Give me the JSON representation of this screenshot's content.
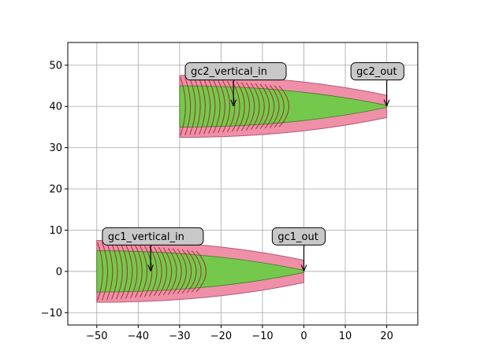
{
  "chart_data": {
    "type": "layout-plot",
    "title": "",
    "xlabel": "",
    "ylabel": "",
    "xlim": [
      -57,
      27.5
    ],
    "ylim": [
      -13,
      55.5
    ],
    "xticks": [
      -50,
      -40,
      -30,
      -20,
      -10,
      0,
      10,
      20
    ],
    "yticks": [
      -10,
      0,
      10,
      20,
      30,
      40,
      50
    ],
    "xtick_labels": [
      "−50",
      "−40",
      "−30",
      "−20",
      "−10",
      "0",
      "10",
      "20"
    ],
    "ytick_labels": [
      "−10",
      "0",
      "10",
      "20",
      "30",
      "40",
      "50"
    ],
    "grid": true,
    "colors": {
      "cladding": "#f08fa8",
      "cladding_edge": "#b05a78",
      "core": "#74c94c",
      "core_edge": "#3d7a2a",
      "grating": "#9a2c2c",
      "callout_fill": "#c8c8c8",
      "grid": "#b0b0b0"
    },
    "couplers": [
      {
        "name": "gc1",
        "x_start": -50,
        "x_end": 0,
        "y_center": 0,
        "cladding_half_width_start": 7.5,
        "cladding_half_width_end": 2.7,
        "core_half_width_start": 5.0,
        "core_half_width_end": 0.25,
        "grating_x_start": -48.5,
        "grating_x_end": -23.5,
        "grating_count": 22
      },
      {
        "name": "gc2",
        "x_start": -30,
        "x_end": 20,
        "y_center": 40,
        "cladding_half_width_start": 7.5,
        "cladding_half_width_end": 2.7,
        "core_half_width_start": 5.0,
        "core_half_width_end": 0.25,
        "grating_x_start": -28.5,
        "grating_x_end": -3.5,
        "grating_count": 22
      }
    ],
    "annotations": [
      {
        "text": "gc1_vertical_in",
        "label_x": -47.5,
        "label_y": 8.5,
        "arrow_x": -37,
        "arrow_y": 0
      },
      {
        "text": "gc1_out",
        "label_x": -6.5,
        "label_y": 8.5,
        "arrow_x": 0,
        "arrow_y": 0
      },
      {
        "text": "gc2_vertical_in",
        "label_x": -27.5,
        "label_y": 48.5,
        "arrow_x": -17,
        "arrow_y": 40
      },
      {
        "text": "gc2_out",
        "label_x": 12.5,
        "label_y": 48.5,
        "arrow_x": 20,
        "arrow_y": 40
      }
    ]
  }
}
